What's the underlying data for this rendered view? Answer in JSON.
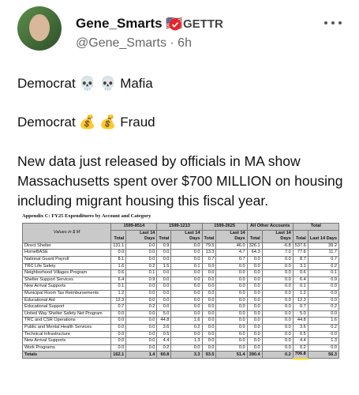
{
  "post": {
    "author": "Gene_Smarts 🇺🇸",
    "platform": "GETTR",
    "handle": "@Gene_Smarts · 6h",
    "lines": [
      "Democrat 💀 💀 Mafia",
      "Democrat 💰 💰 Fraud",
      "New data just released by officials in MA show Massachusetts spent over $700 MILLION on housing including migrant housing this fiscal year."
    ]
  },
  "table": {
    "title": "Appendix C: FY25 Expenditures by Account and Category",
    "corner": "Values in $ M",
    "groups": [
      "1599-8514",
      "1599-1213",
      "1599-2625",
      "All Other Accounts",
      "Total"
    ],
    "sub_headers": [
      "Total",
      "Last 14 Days",
      "Total",
      "Last 14 Days",
      "Total",
      "Last 14 Days",
      "Total",
      "Last 14 Days",
      "Total",
      "Last 14 Days"
    ],
    "rows": [
      [
        "Direct Shelter",
        "131.1",
        "0.0",
        "0.9",
        "0.0",
        "79.5",
        "46.0",
        "326.1",
        "-6.8",
        "537.6",
        "39.2"
      ],
      [
        "HomeBASE",
        "0.0",
        "0.0",
        "0.0",
        "0.0",
        "13.3",
        "4.7",
        "64.3",
        "7.0",
        "77.6",
        "11.7"
      ],
      [
        "National Guard Payroll",
        "8.1",
        "0.0",
        "0.0",
        "0.0",
        "0.7",
        "0.7",
        "0.0",
        "0.0",
        "8.7",
        "0.7"
      ],
      [
        "TRC Life Safety",
        "1.6",
        "0.2",
        "1.5",
        "0.1",
        "0.0",
        "0.0",
        "0.0",
        "0.0",
        "3.1",
        "0.2"
      ],
      [
        "Neighborhood Villages Program",
        "0.6",
        "0.1",
        "0.0",
        "0.0",
        "0.0",
        "0.0",
        "0.0",
        "0.0",
        "0.6",
        "0.1"
      ],
      [
        "Shelter Support Services",
        "6.4",
        "0.9",
        "0.0",
        "0.0",
        "0.0",
        "0.0",
        "0.0",
        "0.0",
        "6.4",
        "0.9"
      ],
      [
        "New Arrival Supports",
        "0.1",
        "0.0",
        "0.0",
        "0.0",
        "0.0",
        "0.0",
        "0.0",
        "0.0",
        "0.1",
        "0.0"
      ],
      [
        "Municipal Room Tax Reimbursements",
        "1.2",
        "0.0",
        "0.0",
        "0.0",
        "0.0",
        "0.0",
        "0.0",
        "0.0",
        "1.2",
        "0.0"
      ],
      [
        "Educational Aid",
        "12.3",
        "0.0",
        "0.0",
        "0.0",
        "0.0",
        "0.0",
        "0.0",
        "0.0",
        "12.3",
        "0.0"
      ],
      [
        "Educational Support",
        "0.7",
        "0.2",
        "0.0",
        "0.0",
        "0.0",
        "0.0",
        "0.0",
        "0.0",
        "0.7",
        "0.2"
      ],
      [
        "United Way Shelter Safety Net Program",
        "0.0",
        "0.0",
        "5.0",
        "0.0",
        "0.0",
        "0.0",
        "0.0",
        "0.0",
        "5.0",
        "0.0"
      ],
      [
        "TRC and CSR Operations",
        "0.0",
        "0.0",
        "44.8",
        "1.6",
        "0.0",
        "0.0",
        "0.0",
        "0.0",
        "44.8",
        "1.6"
      ],
      [
        "Public and Mental Health Services",
        "0.0",
        "0.0",
        "3.6",
        "0.2",
        "0.0",
        "0.0",
        "0.0",
        "0.0",
        "3.6",
        "0.2"
      ],
      [
        "Technical Infrastructure",
        "0.0",
        "0.0",
        "0.5",
        "0.0",
        "0.0",
        "0.0",
        "0.0",
        "0.0",
        "0.5",
        "0.0"
      ],
      [
        "New Arrival Supports",
        "0.0",
        "0.0",
        "4.4",
        "1.3",
        "0.0",
        "0.0",
        "0.0",
        "0.0",
        "4.4",
        "1.3"
      ],
      [
        "Work Programs",
        "0.0",
        "0.0",
        "0.2",
        "0.0",
        "0.0",
        "0.0",
        "0.0",
        "0.0",
        "0.2",
        "0.0"
      ],
      [
        "Totals",
        "162.1",
        "1.4",
        "60.8",
        "3.3",
        "93.5",
        "51.4",
        "390.4",
        "0.2",
        "706.8",
        "56.3"
      ]
    ]
  }
}
